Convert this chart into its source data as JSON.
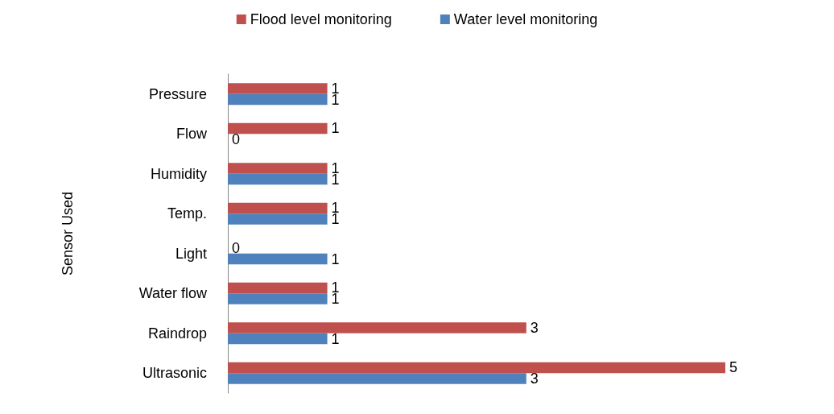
{
  "chart_data": {
    "type": "bar",
    "orientation": "horizontal",
    "ylabel": "Sensor Used",
    "categories": [
      "Pressure",
      "Flow",
      "Humidity",
      "Temp.",
      "Light",
      "Water flow",
      "Raindrop",
      "Ultrasonic"
    ],
    "series": [
      {
        "name": "Flood level monitoring",
        "color": "#c0504d",
        "values": [
          1,
          1,
          1,
          1,
          0,
          1,
          3,
          5
        ]
      },
      {
        "name": "Water level monitoring",
        "color": "#4f81bd",
        "values": [
          1,
          0,
          1,
          1,
          1,
          1,
          1,
          3
        ]
      }
    ],
    "data_labels": true,
    "legend": "top",
    "tick_labels": "y"
  }
}
